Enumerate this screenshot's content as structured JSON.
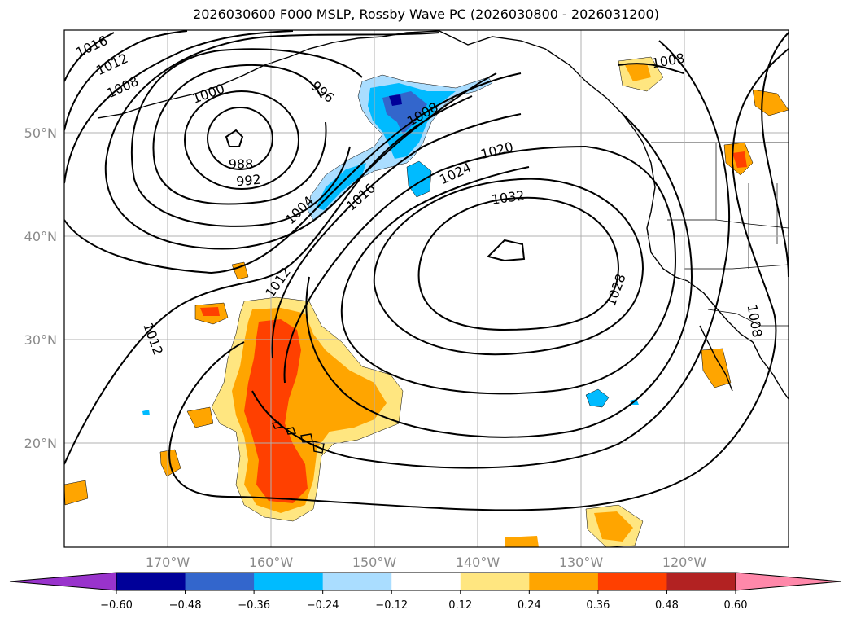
{
  "title": "2026030600 F000 MSLP, Rossby Wave PC (2026030800 - 2026031200)",
  "map": {
    "lon_labels": [
      "170°W",
      "160°W",
      "150°W",
      "140°W",
      "130°W",
      "120°W"
    ],
    "lat_labels": [
      "50°N",
      "40°N",
      "30°N",
      "20°N"
    ],
    "contour_labels": [
      {
        "id": "c1016a",
        "text": "1016"
      },
      {
        "id": "c1012a",
        "text": "1012"
      },
      {
        "id": "c1008a",
        "text": "1008"
      },
      {
        "id": "c1000",
        "text": "1000"
      },
      {
        "id": "c996",
        "text": "996"
      },
      {
        "id": "c988",
        "text": "988"
      },
      {
        "id": "c992",
        "text": "992"
      },
      {
        "id": "c1008b",
        "text": "1008"
      },
      {
        "id": "c1008c",
        "text": "1008"
      },
      {
        "id": "c1020",
        "text": "1020"
      },
      {
        "id": "c1024",
        "text": "1024"
      },
      {
        "id": "c1016b",
        "text": "1016"
      },
      {
        "id": "c1004",
        "text": "1004"
      },
      {
        "id": "c1032",
        "text": "1032"
      },
      {
        "id": "c1012b",
        "text": "1012"
      },
      {
        "id": "c1028",
        "text": "1028"
      },
      {
        "id": "c1012c",
        "text": "1012"
      },
      {
        "id": "c1008d",
        "text": "1008"
      }
    ]
  },
  "colorbar": {
    "ticks": [
      "−0.60",
      "−0.48",
      "−0.36",
      "−0.24",
      "−0.12",
      "0.12",
      "0.24",
      "0.36",
      "0.48",
      "0.60"
    ],
    "colors": [
      "#9933cc",
      "#000099",
      "#3366cc",
      "#00bbff",
      "#aaddff",
      "#ffffff",
      "#ffe680",
      "#ffa500",
      "#ff4000",
      "#b22222",
      "#ff88aa"
    ]
  },
  "colors": {
    "neg_light": "#aaddff",
    "neg_mid": "#00bbff",
    "neg_strong": "#3366cc",
    "neg_max": "#000099",
    "pos_light": "#ffe680",
    "pos_mid": "#ffa500",
    "pos_strong": "#ff4000",
    "pos_max": "#b22222"
  }
}
